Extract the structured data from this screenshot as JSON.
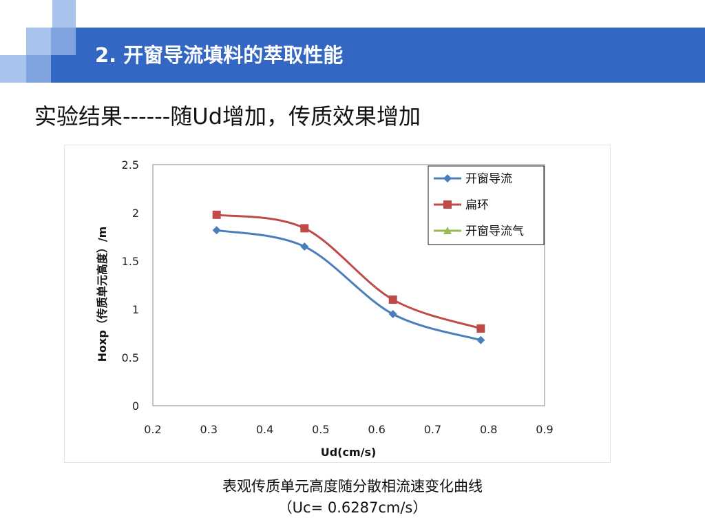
{
  "slide": {
    "title": "2. 开窗导流填料的萃取性能",
    "subtitle": "实验结果------随Ud增加，传质效果增加",
    "caption_line1": "表观传质单元高度随分散相流速变化曲线",
    "caption_line2": "（Uc= 0.6287cm/s）"
  },
  "colors": {
    "header_band": "#3466c4",
    "deco_light": "#a9c4ec",
    "deco_mid": "#7fa3df",
    "series_blue": "#4a7ebb",
    "series_red": "#be4b48",
    "series_green": "#98b954"
  },
  "chart_data": {
    "type": "line",
    "title": "",
    "xlabel": "Ud(cm/s)",
    "ylabel": "Hoxp（传质单元高度）/m",
    "xlim": [
      0.2,
      0.9
    ],
    "ylim": [
      0,
      2.5
    ],
    "x_ticks": [
      "0.2",
      "0.3",
      "0.4",
      "0.5",
      "0.6",
      "0.7",
      "0.8",
      "0.9"
    ],
    "y_ticks": [
      "0",
      "0.5",
      "1",
      "1.5",
      "2",
      "2.5"
    ],
    "grid": false,
    "legend_position": "top-right",
    "smooth": true,
    "series": [
      {
        "name": "开窗导流",
        "color": "#4a7ebb",
        "marker": "diamond",
        "x": [
          0.314,
          0.471,
          0.629,
          0.786
        ],
        "y": [
          1.82,
          1.65,
          0.95,
          0.68
        ]
      },
      {
        "name": "扁环",
        "color": "#be4b48",
        "marker": "square",
        "x": [
          0.314,
          0.471,
          0.629,
          0.786
        ],
        "y": [
          1.98,
          1.84,
          1.1,
          0.8
        ]
      },
      {
        "name": "开窗导流气",
        "color": "#98b954",
        "marker": "triangle",
        "x": [],
        "y": []
      }
    ]
  }
}
